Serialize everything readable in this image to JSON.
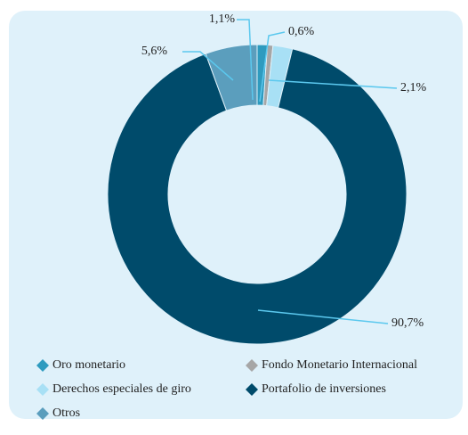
{
  "chart_data": {
    "type": "donut",
    "categories": [
      "Oro monetario",
      "Fondo Monetario Internacional",
      "Derechos especiales de giro",
      "Portafolio de inversiones",
      "Otros"
    ],
    "series": [
      {
        "values": [
          1.1,
          0.6,
          2.1,
          90.7,
          5.6
        ],
        "value_labels": [
          "1,1%",
          "0,6%",
          "2,1%",
          "90,7%",
          "5,6%"
        ],
        "colors": [
          "#2e9bbf",
          "#a6a6a6",
          "#a8e0f5",
          "#004b6b",
          "#5b9ebd"
        ]
      }
    ]
  }
}
